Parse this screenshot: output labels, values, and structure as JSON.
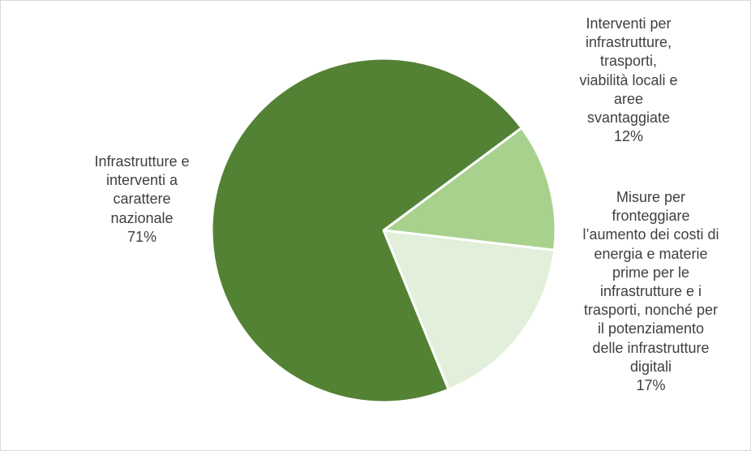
{
  "chart_data": {
    "type": "pie",
    "title": "",
    "slices": [
      {
        "label_lines": [
          "Interventi per",
          "infrastrutture,",
          "trasporti,",
          "viabilità locali e",
          "aree",
          "svantaggiate"
        ],
        "pct_text": "12%",
        "value": 12,
        "color": "#a9d18e"
      },
      {
        "label_lines": [
          "Misure per",
          "fronteggiare",
          "l’aumento dei costi di",
          "energia e materie",
          "prime per le",
          "infrastrutture e i",
          "trasporti, nonché per",
          "il potenziamento",
          "delle infrastrutture",
          "digitali"
        ],
        "pct_text": "17%",
        "value": 17,
        "color": "#e2efda"
      },
      {
        "label_lines": [
          "Infrastrutture e",
          "interventi a",
          "carattere",
          "nazionale"
        ],
        "pct_text": "71%",
        "value": 71,
        "color": "#548235"
      }
    ],
    "slice_border_color": "#ffffff",
    "label_color": "#404040",
    "legend": "none"
  }
}
